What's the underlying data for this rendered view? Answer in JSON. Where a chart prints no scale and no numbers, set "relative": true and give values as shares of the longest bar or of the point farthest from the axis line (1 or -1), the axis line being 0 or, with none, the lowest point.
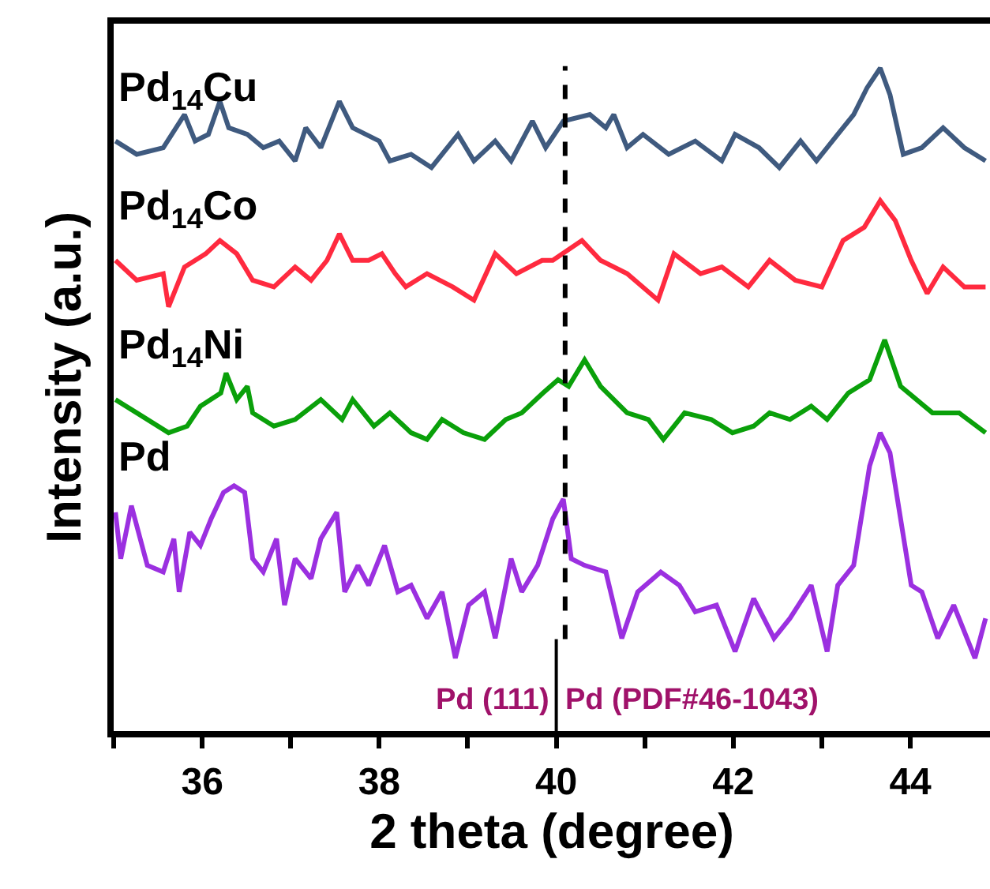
{
  "chart_data": {
    "type": "line",
    "relative": true,
    "xlabel": "2 theta (degree)",
    "ylabel": "Intensity (a.u.)",
    "xlim": [
      35,
      44.9
    ],
    "xticks": [
      {
        "value": 35,
        "label": null
      },
      36,
      {
        "value": 37,
        "label": null
      },
      38,
      {
        "value": 39,
        "label": null
      },
      40,
      {
        "value": 41,
        "label": null
      },
      42,
      {
        "value": 43,
        "label": null
      },
      44
    ],
    "tick_labels": "x",
    "legend": false,
    "marker": "none",
    "line_style": "solid",
    "ref_lines": [
      {
        "axis": "x",
        "value": 40.1,
        "line_style": "dashed",
        "color": "#000000"
      },
      {
        "axis": "x",
        "value": 40,
        "line_style": "solid",
        "color": "#000000"
      }
    ],
    "annotations": [
      "Pd (111)",
      "Pd (PDF#46-1043)"
    ],
    "series": [
      {
        "name": "Pd$_{14}$Cu",
        "color": "#3f5a7f",
        "x": [
          35.02,
          35.26,
          35.56,
          35.8,
          35.92,
          36.07,
          36.2,
          36.3,
          36.51,
          36.69,
          36.87,
          37.05,
          37.17,
          37.34,
          37.55,
          37.7,
          38.0,
          38.12,
          38.36,
          38.59,
          38.89,
          39.07,
          39.31,
          39.49,
          39.73,
          39.88,
          40.08,
          40.38,
          40.56,
          40.65,
          40.8,
          40.98,
          41.27,
          41.57,
          41.87,
          42.02,
          42.29,
          42.52,
          42.76,
          42.94,
          43.18,
          43.36,
          43.51,
          43.66,
          43.77,
          43.92,
          44.13,
          44.37,
          44.61,
          44.85
        ],
        "values": [
          0.89,
          0.87,
          0.88,
          0.93,
          0.89,
          0.9,
          0.95,
          0.91,
          0.9,
          0.88,
          0.89,
          0.86,
          0.91,
          0.88,
          0.95,
          0.91,
          0.89,
          0.86,
          0.87,
          0.85,
          0.9,
          0.86,
          0.89,
          0.86,
          0.92,
          0.88,
          0.92,
          0.93,
          0.91,
          0.93,
          0.88,
          0.9,
          0.87,
          0.89,
          0.86,
          0.9,
          0.88,
          0.85,
          0.89,
          0.86,
          0.9,
          0.93,
          0.97,
          1.0,
          0.96,
          0.87,
          0.88,
          0.91,
          0.88,
          0.86
        ]
      },
      {
        "name": "Pd$_{14}$Co",
        "color": "#ff2a3f",
        "x": [
          35.02,
          35.26,
          35.56,
          35.62,
          35.8,
          36.04,
          36.2,
          36.39,
          36.57,
          36.81,
          37.05,
          37.23,
          37.41,
          37.55,
          37.7,
          37.88,
          38.03,
          38.18,
          38.3,
          38.54,
          38.83,
          39.07,
          39.31,
          39.55,
          39.84,
          39.96,
          40.29,
          40.5,
          40.8,
          41.15,
          41.33,
          41.63,
          41.87,
          42.17,
          42.41,
          42.7,
          43.0,
          43.24,
          43.48,
          43.66,
          43.83,
          44.01,
          44.19,
          44.37,
          44.61,
          44.85
        ],
        "values": [
          0.71,
          0.68,
          0.69,
          0.64,
          0.7,
          0.72,
          0.74,
          0.72,
          0.68,
          0.67,
          0.7,
          0.68,
          0.71,
          0.75,
          0.71,
          0.71,
          0.72,
          0.69,
          0.67,
          0.69,
          0.67,
          0.65,
          0.72,
          0.69,
          0.71,
          0.71,
          0.74,
          0.71,
          0.69,
          0.65,
          0.72,
          0.69,
          0.7,
          0.67,
          0.71,
          0.68,
          0.67,
          0.74,
          0.76,
          0.8,
          0.77,
          0.71,
          0.66,
          0.7,
          0.67,
          0.67
        ]
      },
      {
        "name": "Pd$_{14}$Ni",
        "color": "#0aa00a",
        "x": [
          35.02,
          35.26,
          35.62,
          35.83,
          35.98,
          36.21,
          36.27,
          36.39,
          36.51,
          36.57,
          36.81,
          37.05,
          37.34,
          37.58,
          37.7,
          37.94,
          38.12,
          38.36,
          38.54,
          38.71,
          38.95,
          39.19,
          39.43,
          39.61,
          39.85,
          40.02,
          40.14,
          40.32,
          40.5,
          40.8,
          41.04,
          41.21,
          41.45,
          41.75,
          41.99,
          42.23,
          42.41,
          42.64,
          42.88,
          43.06,
          43.3,
          43.54,
          43.71,
          43.89,
          44.07,
          44.25,
          44.55,
          44.85
        ],
        "values": [
          0.5,
          0.48,
          0.45,
          0.46,
          0.49,
          0.51,
          0.54,
          0.5,
          0.52,
          0.48,
          0.46,
          0.47,
          0.5,
          0.47,
          0.5,
          0.46,
          0.48,
          0.45,
          0.44,
          0.47,
          0.45,
          0.44,
          0.47,
          0.48,
          0.51,
          0.53,
          0.52,
          0.56,
          0.52,
          0.48,
          0.47,
          0.44,
          0.48,
          0.47,
          0.45,
          0.46,
          0.48,
          0.47,
          0.49,
          0.47,
          0.51,
          0.53,
          0.59,
          0.52,
          0.5,
          0.48,
          0.48,
          0.45
        ]
      },
      {
        "name": "Pd",
        "color": "#9b30e0",
        "x": [
          35.02,
          35.08,
          35.2,
          35.38,
          35.56,
          35.68,
          35.74,
          35.86,
          35.98,
          36.1,
          36.24,
          36.36,
          36.48,
          36.57,
          36.69,
          36.84,
          36.93,
          37.05,
          37.23,
          37.34,
          37.52,
          37.61,
          37.76,
          37.88,
          38.06,
          38.21,
          38.36,
          38.54,
          38.71,
          38.86,
          39.01,
          39.19,
          39.31,
          39.49,
          39.61,
          39.79,
          39.96,
          40.08,
          40.17,
          40.32,
          40.56,
          40.74,
          40.92,
          41.18,
          41.39,
          41.57,
          41.81,
          42.02,
          42.23,
          42.46,
          42.64,
          42.88,
          43.06,
          43.18,
          43.36,
          43.54,
          43.66,
          43.77,
          43.89,
          44.01,
          44.13,
          44.31,
          44.49,
          44.73,
          44.85
        ],
        "values": [
          0.33,
          0.26,
          0.34,
          0.25,
          0.24,
          0.29,
          0.21,
          0.3,
          0.28,
          0.32,
          0.36,
          0.37,
          0.36,
          0.26,
          0.24,
          0.29,
          0.19,
          0.26,
          0.23,
          0.29,
          0.33,
          0.21,
          0.25,
          0.22,
          0.28,
          0.21,
          0.22,
          0.17,
          0.21,
          0.11,
          0.19,
          0.21,
          0.14,
          0.26,
          0.21,
          0.25,
          0.32,
          0.35,
          0.26,
          0.25,
          0.24,
          0.14,
          0.21,
          0.24,
          0.22,
          0.18,
          0.19,
          0.12,
          0.2,
          0.14,
          0.17,
          0.22,
          0.12,
          0.22,
          0.25,
          0.4,
          0.45,
          0.42,
          0.32,
          0.22,
          0.21,
          0.14,
          0.19,
          0.11,
          0.17
        ]
      }
    ]
  }
}
